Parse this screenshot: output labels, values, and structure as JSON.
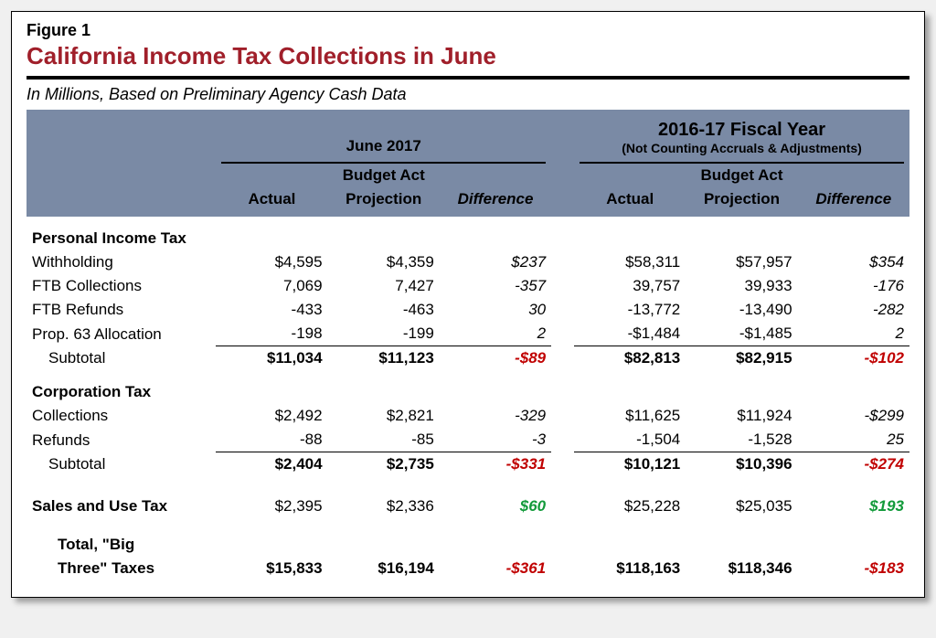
{
  "figure_label": "Figure 1",
  "title": "California Income Tax Collections in June",
  "subtitle": "In Millions, Based on Preliminary Agency Cash Data",
  "colors": {
    "title": "#a01f2a",
    "band": "#7a8aa5",
    "negative": "#c00000",
    "positive": "#129a3a",
    "rule": "#000000",
    "background": "#ffffff"
  },
  "periods": {
    "left": {
      "title": "June 2017",
      "sub": ""
    },
    "right": {
      "title": "2016-17 Fiscal Year",
      "sub": "(Not Counting Accruals & Adjustments)"
    }
  },
  "column_labels": {
    "actual": "Actual",
    "projection_l1": "Budget Act",
    "projection_l2": "Projection",
    "difference": "Difference"
  },
  "sections": [
    {
      "name": "Personal Income Tax",
      "rows": [
        {
          "label": "Withholding",
          "left": [
            "$4,595",
            "$4,359",
            "$237"
          ],
          "right": [
            "$58,311",
            "$57,957",
            "$354"
          ],
          "diff_style": [
            "italic",
            "italic"
          ]
        },
        {
          "label": "FTB Collections",
          "left": [
            "7,069",
            "7,427",
            "-357"
          ],
          "right": [
            "39,757",
            "39,933",
            "-176"
          ],
          "diff_style": [
            "italic",
            "italic"
          ]
        },
        {
          "label": "FTB Refunds",
          "left": [
            "-433",
            "-463",
            "30"
          ],
          "right": [
            "-13,772",
            "-13,490",
            "-282"
          ],
          "diff_style": [
            "italic",
            "italic"
          ]
        },
        {
          "label": "Prop. 63 Allocation",
          "left": [
            "-198",
            "-199",
            "2"
          ],
          "right": [
            "-$1,484",
            "-$1,485",
            "2"
          ],
          "diff_style": [
            "italic",
            "italic"
          ],
          "underline": true
        }
      ],
      "subtotal": {
        "label": "Subtotal",
        "left": [
          "$11,034",
          "$11,123",
          "-$89"
        ],
        "right": [
          "$82,813",
          "$82,915",
          "-$102"
        ],
        "diff_negative": [
          true,
          true
        ]
      }
    },
    {
      "name": "Corporation Tax",
      "rows": [
        {
          "label": "Collections",
          "left": [
            "$2,492",
            "$2,821",
            "-329"
          ],
          "right": [
            "$11,625",
            "$11,924",
            "-$299"
          ],
          "diff_style": [
            "italic",
            "italic"
          ]
        },
        {
          "label": "Refunds",
          "left": [
            "-88",
            "-85",
            "-3"
          ],
          "right": [
            "-1,504",
            "-1,528",
            "25"
          ],
          "diff_style": [
            "italic",
            "italic"
          ],
          "underline": true
        }
      ],
      "subtotal": {
        "label": "Subtotal",
        "left": [
          "$2,404",
          "$2,735",
          "-$331"
        ],
        "right": [
          "$10,121",
          "$10,396",
          "-$274"
        ],
        "diff_negative": [
          true,
          true
        ]
      }
    }
  ],
  "sales_row": {
    "label": "Sales and Use Tax",
    "left": [
      "$2,395",
      "$2,336",
      "$60"
    ],
    "right": [
      "$25,228",
      "$25,035",
      "$193"
    ],
    "diff_positive": [
      true,
      true
    ]
  },
  "total": {
    "label_l1": "Total, \"Big",
    "label_l2": "Three\" Taxes",
    "left": [
      "$15,833",
      "$16,194",
      "-$361"
    ],
    "right": [
      "$118,163",
      "$118,346",
      "-$183"
    ],
    "diff_negative": [
      true,
      true
    ]
  }
}
